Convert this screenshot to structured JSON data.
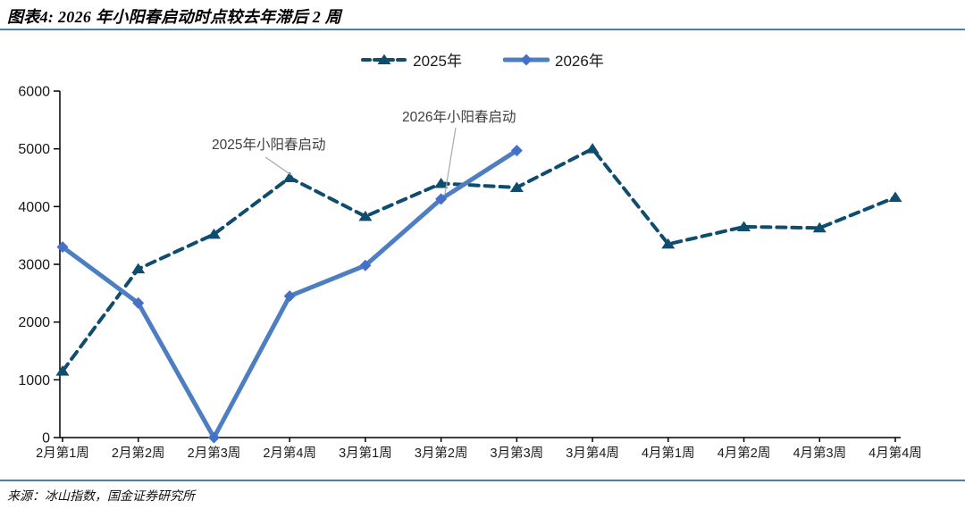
{
  "header": {
    "title": "图表4: 2026 年小阳春启动时点较去年滞后 2 周"
  },
  "footer": {
    "source": "来源：冰山指数，国金证券研究所"
  },
  "colors": {
    "series_2025": "#0f4d6e",
    "series_2026_line": "#4d7ec2",
    "series_2026_marker": "#4470ca",
    "rule_accent": "#4a81a9",
    "axis": "#000000",
    "annotation_text": "#404040",
    "leader_line": "#a8a8a8"
  },
  "chart_data": {
    "type": "line",
    "title": "图表4: 2026 年小阳春启动时点较去年滞后 2 周",
    "categories": [
      "2月第1周",
      "2月第2周",
      "2月第3周",
      "2月第4周",
      "3月第1周",
      "3月第2周",
      "3月第3周",
      "3月第4周",
      "4月第1周",
      "4月第2周",
      "4月第3周",
      "4月第4周"
    ],
    "series": [
      {
        "name": "2025年",
        "style": "dashed",
        "marker": "triangle",
        "color": "#0f4d6e",
        "marker_color": "#0f4d6e",
        "values": [
          1150,
          2920,
          3520,
          4500,
          3830,
          4400,
          4330,
          5000,
          3350,
          3650,
          3630,
          4160
        ]
      },
      {
        "name": "2026年",
        "style": "solid",
        "marker": "diamond",
        "color": "#4d7ec2",
        "marker_color": "#4470ca",
        "values": [
          3300,
          2330,
          0,
          2450,
          2980,
          4130,
          4970
        ]
      }
    ],
    "ylim": [
      0,
      6000
    ],
    "y_ticks": [
      0,
      1000,
      2000,
      3000,
      4000,
      5000,
      6000
    ],
    "grid": false,
    "legend_position": "top-center",
    "annotations": [
      {
        "text": "2025年小阳春启动",
        "points_to_series": "2025年",
        "points_to_category": "2月第4周",
        "points_to_value": 4500
      },
      {
        "text": "2026年小阳春启动",
        "points_to_series": "2026年",
        "points_to_category": "3月第2周",
        "points_to_value": 4130
      }
    ]
  }
}
